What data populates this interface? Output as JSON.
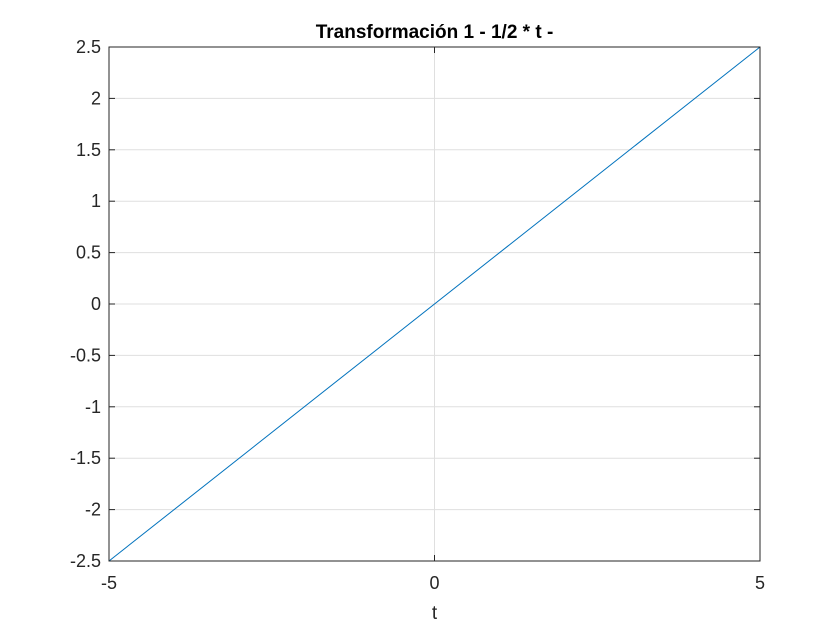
{
  "chart_data": {
    "type": "line",
    "title": "Transformación 1 - 1/2 * t -",
    "xlabel": "t",
    "ylabel": "",
    "xlim": [
      -5,
      5
    ],
    "ylim": [
      -2.5,
      2.5
    ],
    "xticks": [
      -5,
      0,
      5
    ],
    "xtick_labels": [
      "-5",
      "0",
      "5"
    ],
    "yticks": [
      -2.5,
      -2,
      -1.5,
      -1,
      -0.5,
      0,
      0.5,
      1,
      1.5,
      2,
      2.5
    ],
    "ytick_labels": [
      "-2.5",
      "-2",
      "-1.5",
      "-1",
      "-0.5",
      "0",
      "0.5",
      "1",
      "1.5",
      "2",
      "2.5"
    ],
    "grid": true,
    "series": [
      {
        "color": "#0072bd",
        "x": [
          -5,
          5
        ],
        "y": [
          -2.5,
          2.5
        ]
      }
    ]
  }
}
